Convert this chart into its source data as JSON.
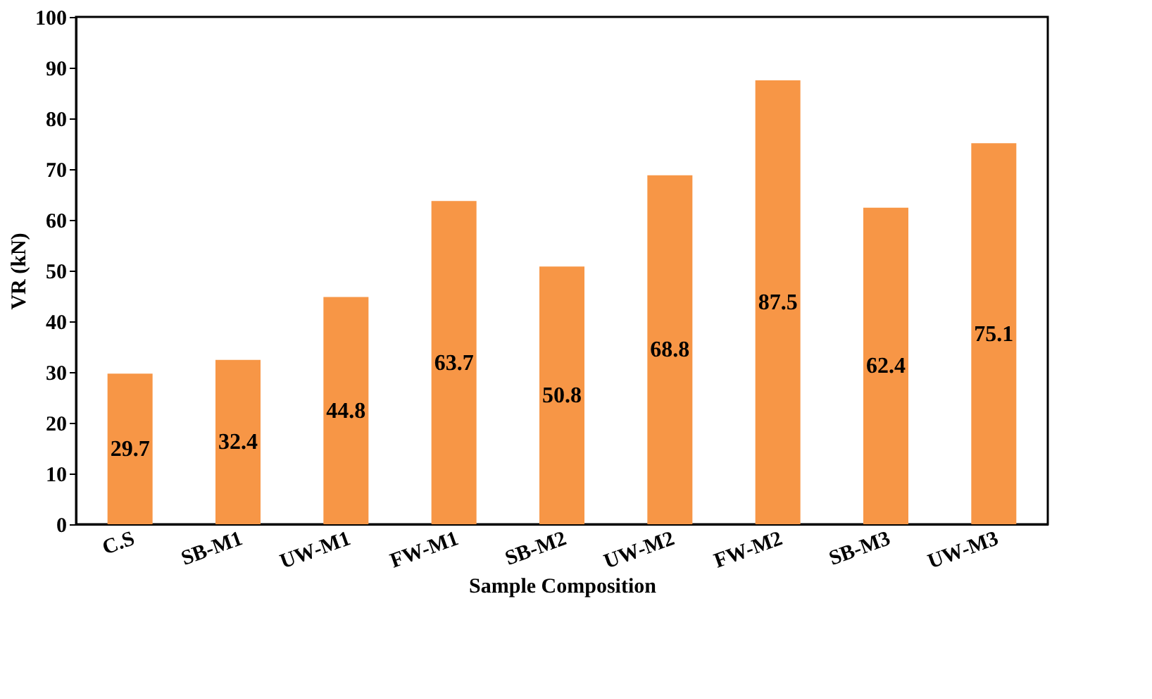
{
  "chart_data": {
    "type": "bar",
    "xlabel": "Sample Composition",
    "ylabel": "VR (kN)",
    "categories": [
      "C.S",
      "SB-M1",
      "UW-M1",
      "FW-M1",
      "SB-M2",
      "UW-M2",
      "FW-M2",
      "SB-M3",
      "UW-M3"
    ],
    "values": [
      29.7,
      32.4,
      44.8,
      63.7,
      50.8,
      68.8,
      87.5,
      62.4,
      75.1
    ],
    "color": "#f79646",
    "ylim": [
      0,
      100
    ],
    "yticks": [
      0,
      10,
      20,
      30,
      40,
      50,
      60,
      70,
      80,
      90,
      100
    ],
    "grid": false,
    "data_labels": true
  }
}
